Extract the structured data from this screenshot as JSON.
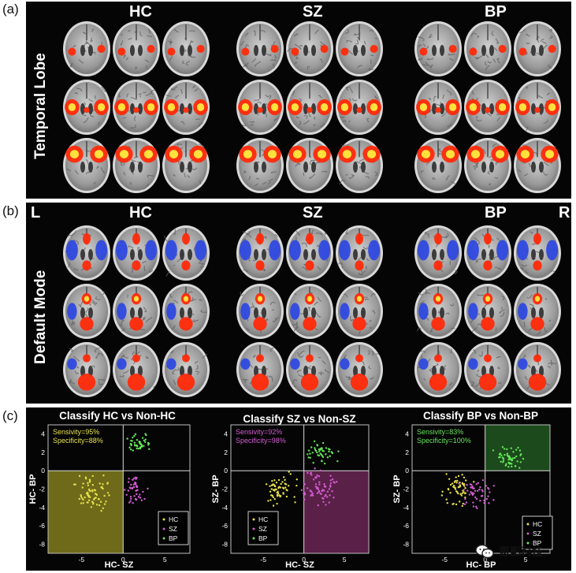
{
  "panel_labels": {
    "a": "(a)",
    "b": "(b)",
    "c": "(c)"
  },
  "panel_a": {
    "side_label": "Temporal Lobe",
    "groups": [
      "HC",
      "SZ",
      "BP"
    ]
  },
  "panel_b": {
    "side_label": "Default Mode",
    "groups": [
      "HC",
      "SZ",
      "BP"
    ],
    "left_marker": "L",
    "right_marker": "R"
  },
  "colors": {
    "hot": "#ff2a0a",
    "hot_core": "#ffe23c",
    "cold": "#2f49e0",
    "hc_points": "#e6e04a",
    "sz_points": "#d25cd2",
    "bp_points": "#66e55a",
    "hc_region": "#6e6a1a",
    "sz_region": "#5a2048",
    "bp_region": "#1c4a1c"
  },
  "panel_c": {
    "plots": [
      {
        "title": "Classify HC vs Non-HC",
        "xlabel": "HC- SZ",
        "ylabel": "HC- BP",
        "stats": [
          {
            "text": "Sensivity=95%",
            "color": "#e6e04a"
          },
          {
            "text": "Specificity=88%",
            "color": "#e6e04a"
          }
        ],
        "x_ticks": [
          "-5",
          "0",
          "5"
        ],
        "y_ticks": [
          "4",
          "2",
          "0",
          "-2",
          "-4",
          "-6",
          "-8"
        ],
        "legend": [
          "HC",
          "SZ",
          "BP"
        ]
      },
      {
        "title": "Classify SZ vs Non-SZ",
        "xlabel": "HC- SZ",
        "ylabel": "SZ- BP",
        "stats": [
          {
            "text": "Sensivity=92%",
            "color": "#d25cd2"
          },
          {
            "text": "Specificity=98%",
            "color": "#d25cd2"
          }
        ],
        "x_ticks": [
          "-5",
          "0",
          "5"
        ],
        "y_ticks": [
          "4",
          "2",
          "0",
          "-2",
          "-4",
          "-6",
          "-8"
        ],
        "legend": [
          "HC",
          "SZ",
          "BP"
        ]
      },
      {
        "title": "Classify BP vs Non-BP",
        "xlabel": "HC- BP",
        "ylabel": "SZ- BP",
        "stats": [
          {
            "text": "Sensivity=83%",
            "color": "#66e55a"
          },
          {
            "text": "Specificity=100%",
            "color": "#66e55a"
          }
        ],
        "x_ticks": [
          "-5",
          "0",
          "5"
        ],
        "y_ticks": [
          "4",
          "2",
          "0",
          "-2",
          "-4",
          "-6",
          "-8"
        ],
        "legend": [
          "HC",
          "SZ",
          "BP"
        ]
      }
    ]
  },
  "watermark": {
    "text": "思影科技",
    "icon": "wechat-icon"
  }
}
